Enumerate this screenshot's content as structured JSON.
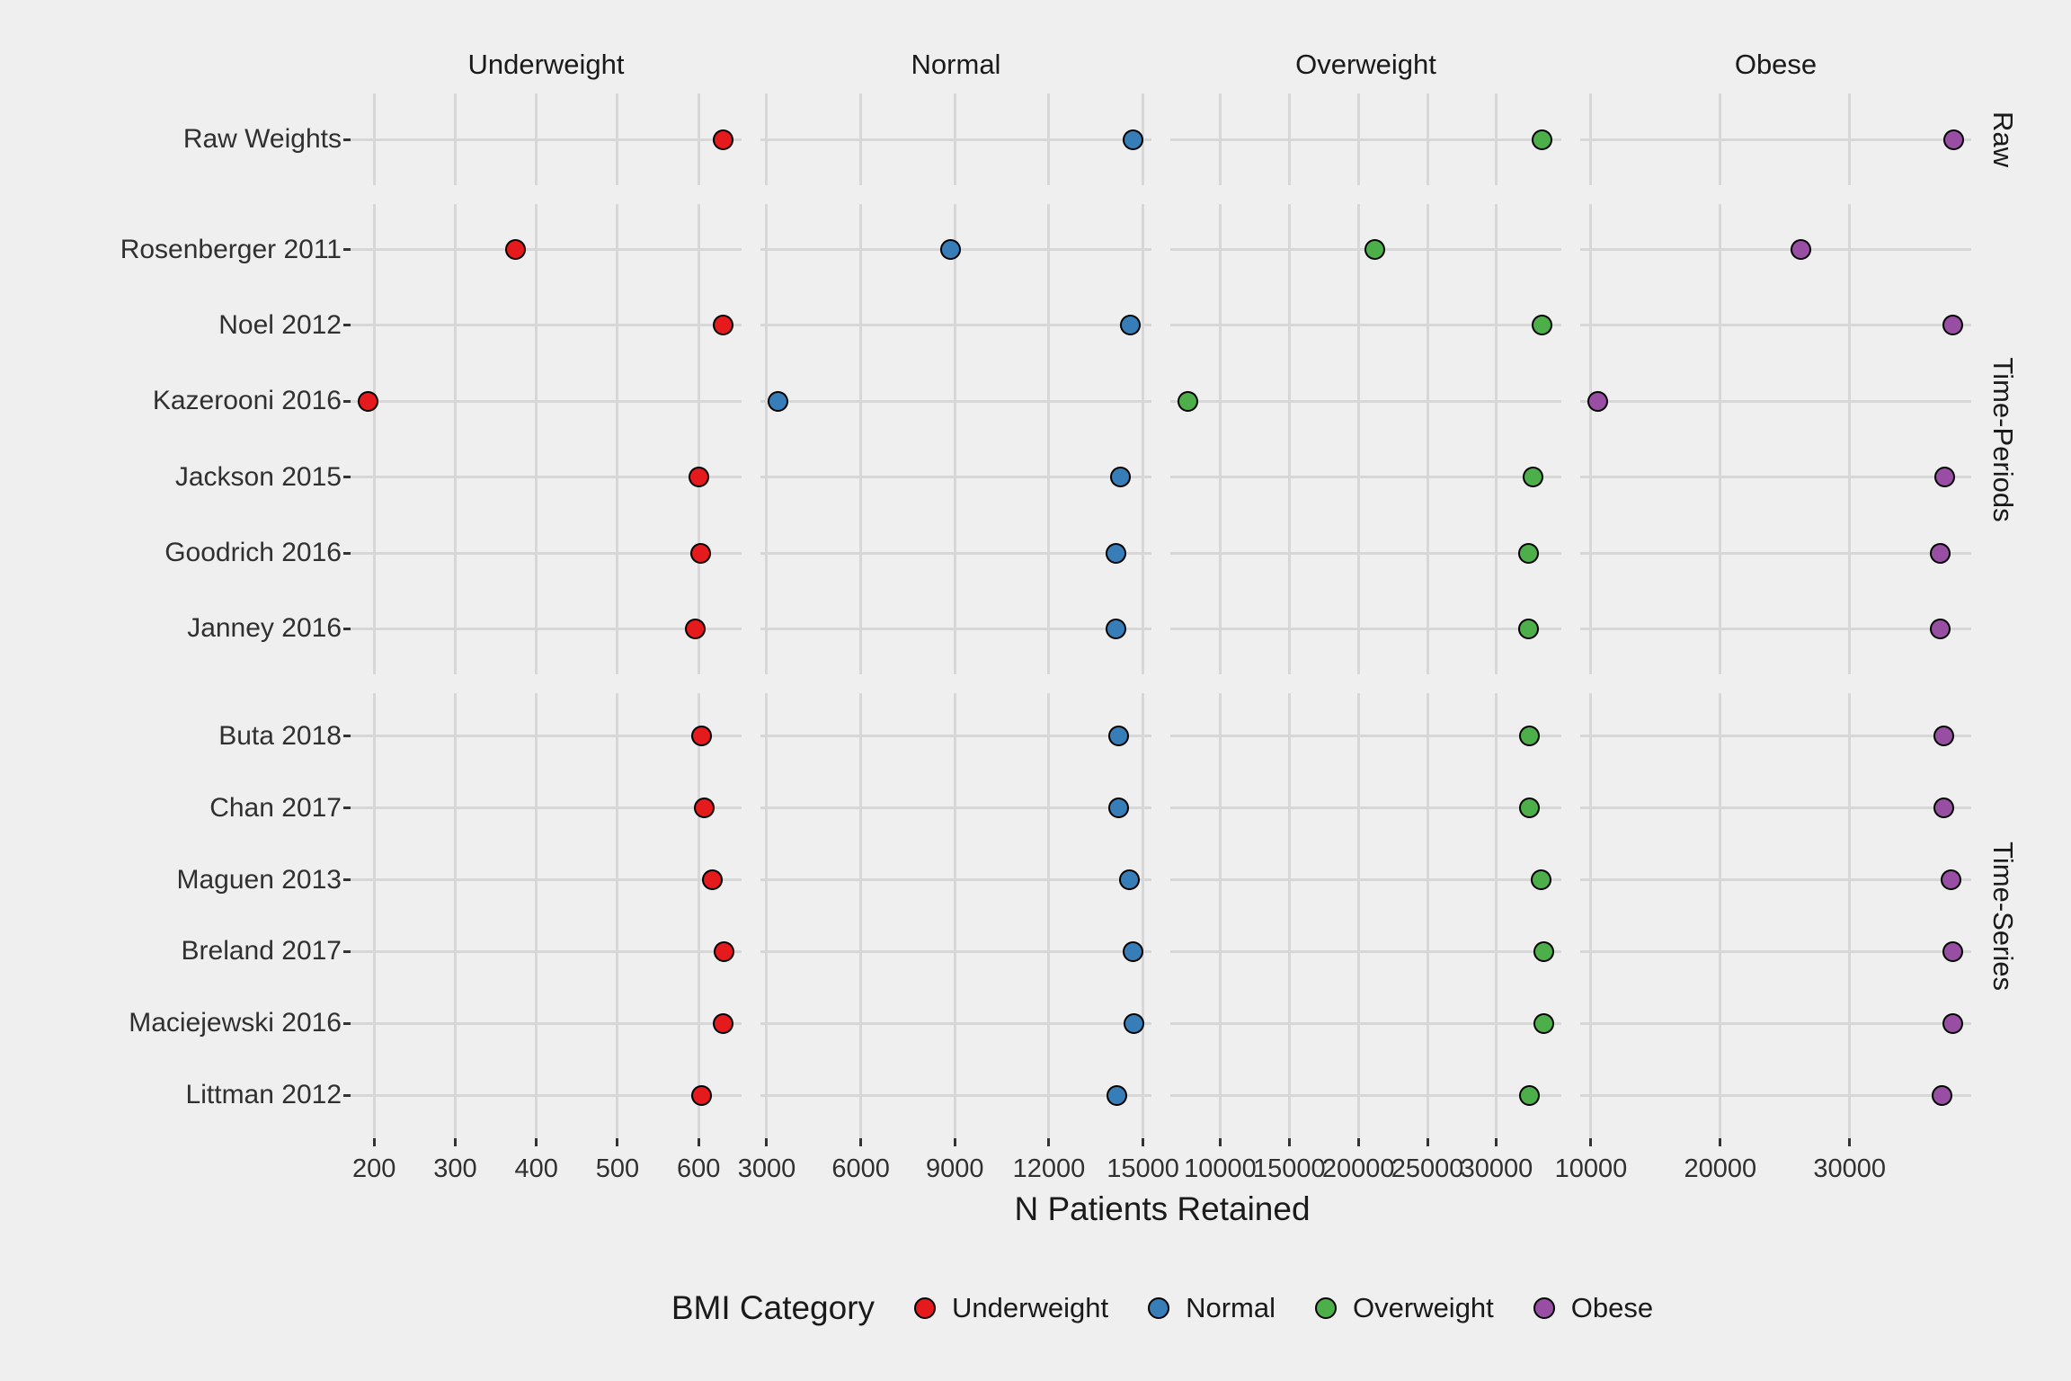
{
  "chart_data": {
    "type": "scatter",
    "title": "",
    "xlabel": "N Patients Retained",
    "grid": "major-only",
    "legend": {
      "title": "BMI Category",
      "position": "bottom",
      "entries": [
        {
          "label": "Underweight",
          "color": "#E41A1C"
        },
        {
          "label": "Normal",
          "color": "#377EB8"
        },
        {
          "label": "Overweight",
          "color": "#4DAF4A"
        },
        {
          "label": "Obese",
          "color": "#984EA3"
        }
      ]
    },
    "col_facets": [
      {
        "label": "Underweight",
        "color": "#E41A1C",
        "ticks": [
          200,
          300,
          400,
          500,
          600
        ],
        "domain": [
          171,
          653
        ]
      },
      {
        "label": "Normal",
        "color": "#377EB8",
        "ticks": [
          3000,
          6000,
          9000,
          12000,
          15000
        ],
        "domain": [
          2800,
          15270
        ]
      },
      {
        "label": "Overweight",
        "color": "#4DAF4A",
        "ticks": [
          10000,
          15000,
          20000,
          25000,
          30000
        ],
        "domain": [
          6390,
          34690
        ]
      },
      {
        "label": "Obese",
        "color": "#984EA3",
        "ticks": [
          10000,
          20000,
          30000
        ],
        "domain": [
          9170,
          39400
        ]
      }
    ],
    "row_facets": [
      {
        "label": "Raw",
        "rows": [
          {
            "study": "Raw Weights",
            "values": [
              630,
              14670,
              33270,
              38030
            ]
          }
        ]
      },
      {
        "label": "Time-Periods",
        "rows": [
          {
            "study": "Rosenberger 2011",
            "values": [
              374,
              8850,
              21210,
              26260
            ]
          },
          {
            "study": "Noel 2012",
            "values": [
              630,
              14610,
              33270,
              37960
            ]
          },
          {
            "study": "Kazerooni 2016",
            "values": [
              193,
              3370,
              7680,
              10550
            ]
          },
          {
            "study": "Jackson 2015",
            "values": [
              600,
              14270,
              32620,
              37340
            ]
          },
          {
            "study": "Goodrich 2016",
            "values": [
              603,
              14130,
              32300,
              36990
            ]
          },
          {
            "study": "Janney 2016",
            "values": [
              596,
              14130,
              32300,
              36990
            ]
          }
        ]
      },
      {
        "label": "Time-Series",
        "rows": [
          {
            "study": "Buta 2018",
            "values": [
              604,
              14210,
              32360,
              37270
            ]
          },
          {
            "study": "Chan 2017",
            "values": [
              607,
              14210,
              32360,
              37270
            ]
          },
          {
            "study": "Maguen 2013",
            "values": [
              617,
              14580,
              33200,
              37820
            ]
          },
          {
            "study": "Breland 2017",
            "values": [
              631,
              14670,
              33400,
              37960
            ]
          },
          {
            "study": "Maciejewski 2016",
            "values": [
              630,
              14700,
              33400,
              37960
            ]
          },
          {
            "study": "Littman 2012",
            "values": [
              604,
              14180,
              32360,
              37130
            ]
          }
        ]
      }
    ]
  },
  "styles": {
    "background": "#EFEFEF",
    "gridline": "#D7D7D7",
    "text": "#303030",
    "dot_stroke": "#000000"
  }
}
